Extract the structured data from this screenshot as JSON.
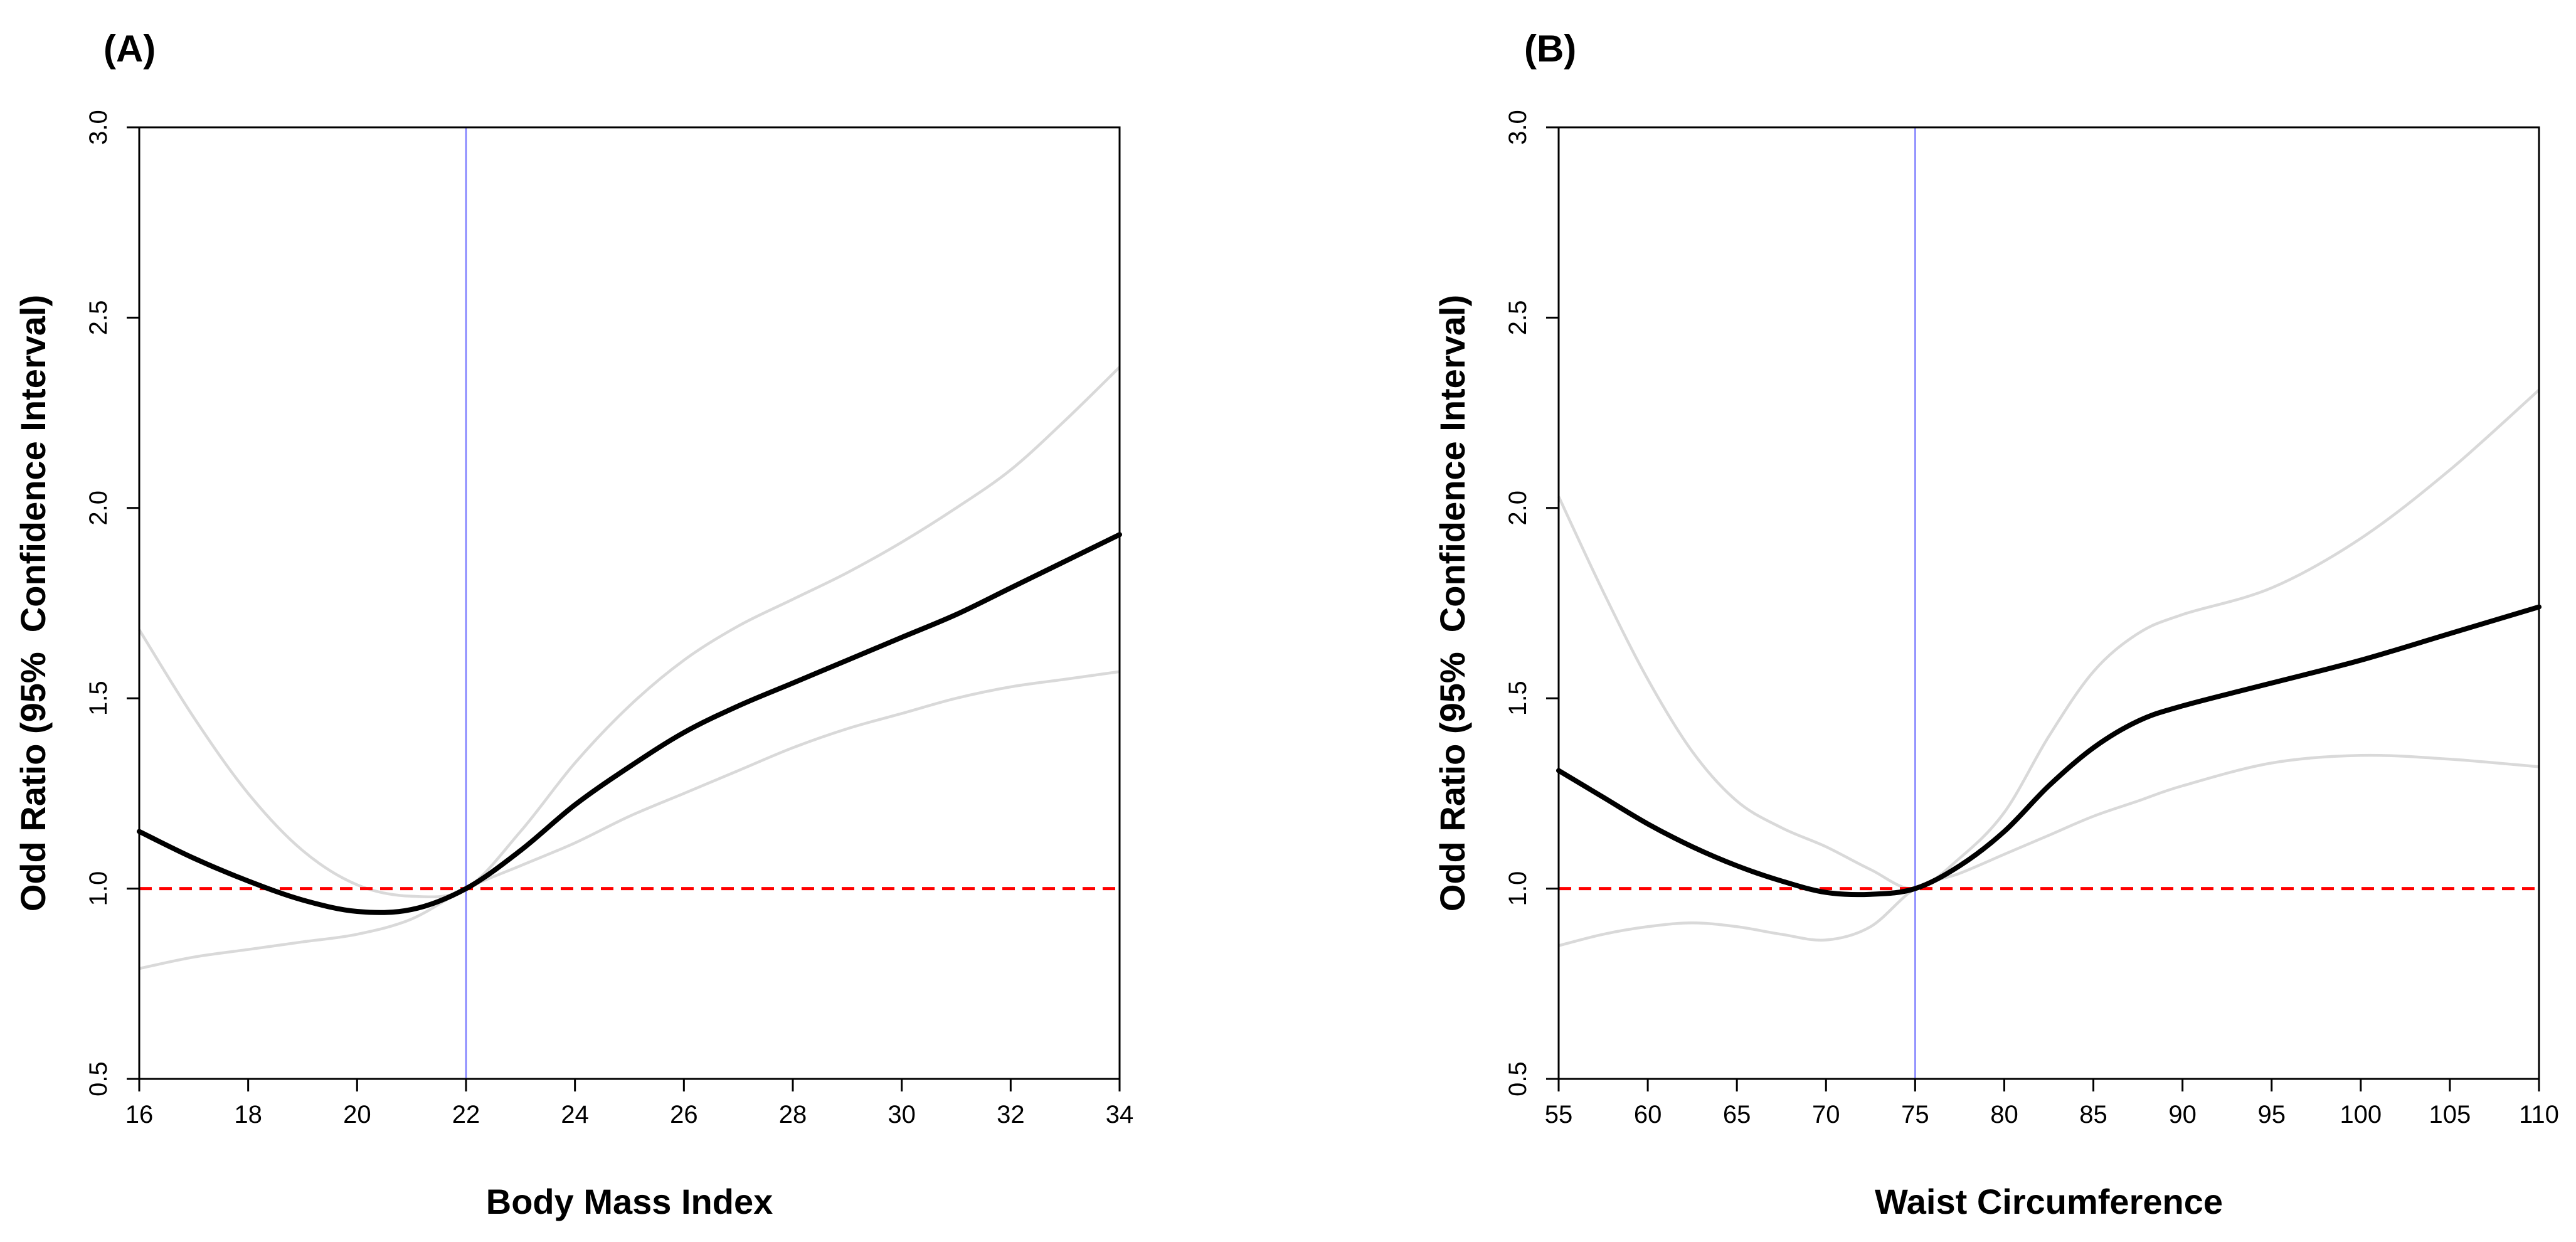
{
  "figure": {
    "panels": [
      "(A)",
      "(B)"
    ]
  },
  "chart_data": [
    {
      "type": "line",
      "panel_label": "(A)",
      "title": "",
      "xlabel": "Body Mass Index",
      "ylabel": "Odd Ratio (95%  Confidence Interval)",
      "xlim": [
        16,
        34
      ],
      "ylim": [
        0.5,
        3.0
      ],
      "x_ticks": [
        16,
        18,
        20,
        22,
        24,
        26,
        28,
        30,
        32,
        34
      ],
      "y_ticks": [
        0.5,
        1.0,
        1.5,
        2.0,
        2.5,
        3.0
      ],
      "y_tick_labels": [
        "0.5",
        "1.0",
        "1.5",
        "2.0",
        "2.5",
        "3.0"
      ],
      "reference_x": 22,
      "reference_y": 1.0,
      "series": [
        {
          "name": "upper 95% CI",
          "style": "ci",
          "color": "#d9d9d9",
          "x": [
            16,
            17,
            18,
            19,
            20,
            21,
            22,
            23,
            24,
            25,
            26,
            27,
            28,
            29,
            30,
            31,
            32,
            33,
            34
          ],
          "y": [
            1.68,
            1.45,
            1.25,
            1.1,
            1.01,
            0.98,
            1.0,
            1.15,
            1.33,
            1.48,
            1.6,
            1.69,
            1.76,
            1.83,
            1.91,
            2.0,
            2.1,
            2.23,
            2.37
          ]
        },
        {
          "name": "odds ratio",
          "style": "main",
          "color": "#000000",
          "x": [
            16,
            17,
            18,
            19,
            20,
            21,
            22,
            23,
            24,
            25,
            26,
            27,
            28,
            29,
            30,
            31,
            32,
            33,
            34
          ],
          "y": [
            1.15,
            1.08,
            1.02,
            0.97,
            0.94,
            0.945,
            1.0,
            1.1,
            1.22,
            1.32,
            1.41,
            1.48,
            1.54,
            1.6,
            1.66,
            1.72,
            1.79,
            1.86,
            1.93
          ]
        },
        {
          "name": "lower 95% CI",
          "style": "ci",
          "color": "#d9d9d9",
          "x": [
            16,
            17,
            18,
            19,
            20,
            21,
            22,
            23,
            24,
            25,
            26,
            27,
            28,
            29,
            30,
            31,
            32,
            33,
            34
          ],
          "y": [
            0.79,
            0.82,
            0.84,
            0.86,
            0.88,
            0.92,
            1.0,
            1.06,
            1.12,
            1.19,
            1.25,
            1.31,
            1.37,
            1.42,
            1.46,
            1.5,
            1.53,
            1.55,
            1.57
          ]
        }
      ]
    },
    {
      "type": "line",
      "panel_label": "(B)",
      "title": "",
      "xlabel": "Waist Circumference",
      "ylabel": "Odd Ratio (95%  Confidence Interval)",
      "xlim": [
        55,
        110
      ],
      "ylim": [
        0.5,
        3.0
      ],
      "x_ticks": [
        55,
        60,
        65,
        70,
        75,
        80,
        85,
        90,
        95,
        100,
        105,
        110
      ],
      "y_ticks": [
        0.5,
        1.0,
        1.5,
        2.0,
        2.5,
        3.0
      ],
      "y_tick_labels": [
        "0.5",
        "1.0",
        "1.5",
        "2.0",
        "2.5",
        "3.0"
      ],
      "reference_x": 75,
      "reference_y": 1.0,
      "series": [
        {
          "name": "upper 95% CI",
          "style": "ci",
          "color": "#d9d9d9",
          "x": [
            55,
            57.5,
            60,
            62.5,
            65,
            67.5,
            70,
            72.5,
            75,
            77.5,
            80,
            82.5,
            85,
            87.5,
            90,
            95,
            100,
            105,
            110
          ],
          "y": [
            2.03,
            1.78,
            1.55,
            1.36,
            1.23,
            1.16,
            1.11,
            1.05,
            1.0,
            1.08,
            1.2,
            1.4,
            1.57,
            1.67,
            1.72,
            1.79,
            1.92,
            2.1,
            2.31
          ]
        },
        {
          "name": "odds ratio",
          "style": "main",
          "color": "#000000",
          "x": [
            55,
            57.5,
            60,
            62.5,
            65,
            67.5,
            70,
            72.5,
            75,
            77.5,
            80,
            82.5,
            85,
            87.5,
            90,
            95,
            100,
            105,
            110
          ],
          "y": [
            1.31,
            1.24,
            1.17,
            1.11,
            1.06,
            1.02,
            0.99,
            0.985,
            1.0,
            1.06,
            1.15,
            1.27,
            1.37,
            1.44,
            1.48,
            1.54,
            1.6,
            1.67,
            1.74
          ]
        },
        {
          "name": "lower 95% CI",
          "style": "ci",
          "color": "#d9d9d9",
          "x": [
            55,
            57.5,
            60,
            62.5,
            65,
            67.5,
            70,
            72.5,
            75,
            77.5,
            80,
            82.5,
            85,
            87.5,
            90,
            95,
            100,
            105,
            110
          ],
          "y": [
            0.85,
            0.88,
            0.9,
            0.91,
            0.9,
            0.88,
            0.865,
            0.9,
            1.0,
            1.04,
            1.09,
            1.14,
            1.19,
            1.23,
            1.27,
            1.33,
            1.35,
            1.34,
            1.32
          ]
        }
      ]
    }
  ],
  "colors": {
    "reference_hline": "#ff0000",
    "reference_vline": "#7f7fff",
    "axis": "#000000"
  }
}
